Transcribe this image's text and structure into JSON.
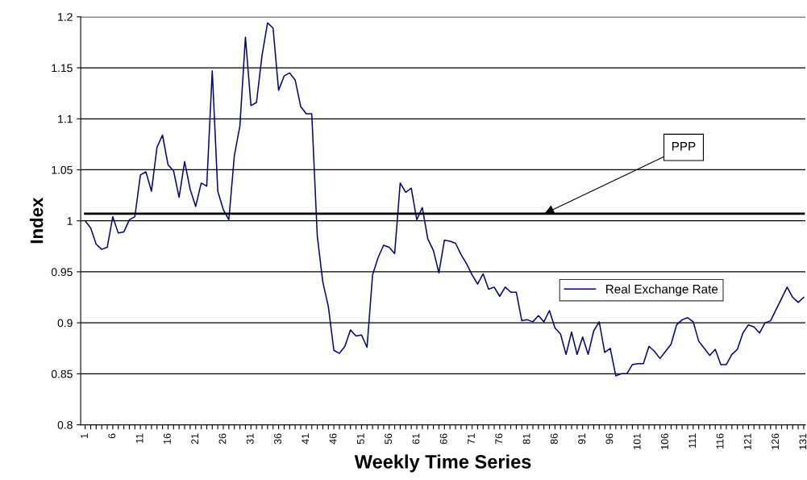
{
  "chart_data": {
    "type": "line",
    "xlabel": "Weekly Time Series",
    "ylabel": "Index",
    "categories": [
      "1",
      null,
      null,
      null,
      null,
      "6",
      null,
      null,
      null,
      null,
      "11",
      null,
      null,
      null,
      null,
      "16",
      null,
      null,
      null,
      null,
      "21",
      null,
      null,
      null,
      null,
      "26",
      null,
      null,
      null,
      null,
      "31",
      null,
      null,
      null,
      null,
      "36",
      null,
      null,
      null,
      null,
      "41",
      null,
      null,
      null,
      null,
      "46",
      null,
      null,
      null,
      null,
      "51",
      null,
      null,
      null,
      null,
      "56",
      null,
      null,
      null,
      null,
      "61",
      null,
      null,
      null,
      null,
      "66",
      null,
      null,
      null,
      null,
      "71",
      null,
      null,
      null,
      null,
      "76",
      null,
      null,
      null,
      null,
      "81",
      null,
      null,
      null,
      null,
      "86",
      null,
      null,
      null,
      null,
      "91",
      null,
      null,
      null,
      null,
      "96",
      null,
      null,
      null,
      null,
      "101",
      null,
      null,
      null,
      null,
      "106",
      null,
      null,
      null,
      null,
      "111",
      null,
      null,
      null,
      null,
      "116",
      null,
      null,
      null,
      null,
      "121",
      null,
      null,
      null,
      null,
      "126",
      null,
      null,
      null,
      null,
      "131"
    ],
    "series": [
      {
        "name": "Real Exchange Rate",
        "color": "#000080",
        "values": [
          1.0,
          0.993,
          0.977,
          0.972,
          0.974,
          1.004,
          0.988,
          0.989,
          1.001,
          1.004,
          1.045,
          1.048,
          1.029,
          1.072,
          1.084,
          1.055,
          1.049,
          1.023,
          1.058,
          1.031,
          1.014,
          1.037,
          1.034,
          1.147,
          1.029,
          1.011,
          1.001,
          1.064,
          1.093,
          1.18,
          1.113,
          1.116,
          1.162,
          1.194,
          1.189,
          1.128,
          1.142,
          1.145,
          1.138,
          1.112,
          1.105,
          1.105,
          0.985,
          0.94,
          0.916,
          0.873,
          0.87,
          0.877,
          0.893,
          0.887,
          0.888,
          0.876,
          0.947,
          0.964,
          0.976,
          0.974,
          0.968,
          1.037,
          1.028,
          1.032,
          1.001,
          1.013,
          0.982,
          0.971,
          0.949,
          0.981,
          0.98,
          0.978,
          0.967,
          0.958,
          0.947,
          0.938,
          0.948,
          0.933,
          0.935,
          0.926,
          0.935,
          0.93,
          0.93,
          0.902,
          0.903,
          0.901,
          0.907,
          0.901,
          0.912,
          0.895,
          0.889,
          0.869,
          0.891,
          0.869,
          0.886,
          0.869,
          0.892,
          0.901,
          0.871,
          0.875,
          0.848,
          0.85,
          0.85,
          0.859,
          0.86,
          0.86,
          0.877,
          0.872,
          0.865,
          0.872,
          0.879,
          0.898,
          0.903,
          0.905,
          0.901,
          0.882,
          0.875,
          0.868,
          0.874,
          0.859,
          0.859,
          0.869,
          0.874,
          0.89,
          0.898,
          0.896,
          0.89,
          0.9,
          0.902,
          0.913,
          0.924,
          0.935,
          0.925,
          0.92,
          0.925
        ]
      }
    ],
    "ylim": [
      0.8,
      1.2
    ],
    "yticks": [
      0.8,
      0.85,
      0.9,
      0.95,
      1,
      1.05,
      1.1,
      1.15,
      1.2
    ],
    "ref_lines": [
      {
        "axis": "y",
        "value": 1.007,
        "label": "PPP",
        "color": "#000000"
      }
    ],
    "grid": "y",
    "legend": "right",
    "marker": "none",
    "line_style": "solid"
  }
}
